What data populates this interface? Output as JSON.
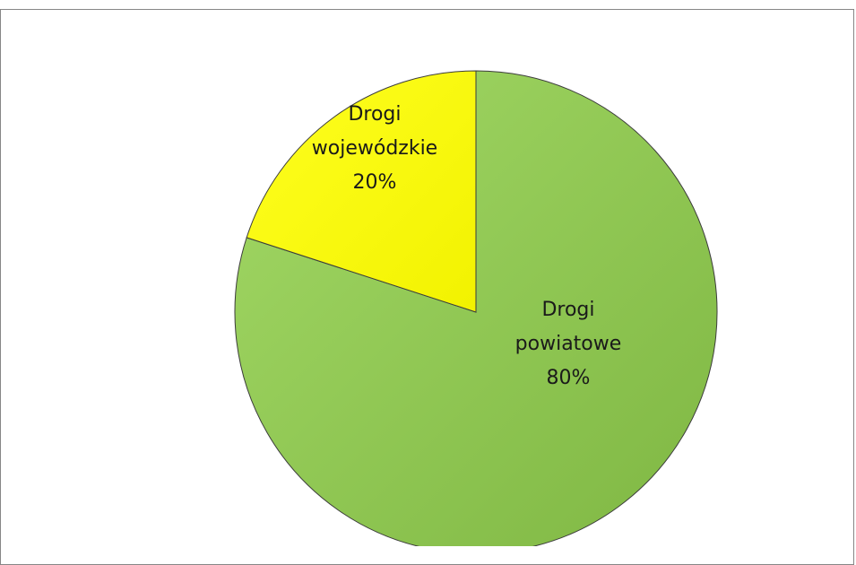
{
  "chart_data": {
    "type": "pie",
    "title": "",
    "slices": [
      {
        "name": "Drogi powiatowe",
        "label_lines": [
          "Drogi",
          "powiatowe",
          "80%"
        ],
        "percent": 80,
        "color": "#8dc752",
        "color_light": "#9fd65f"
      },
      {
        "name": "Drogi wojewódzkie",
        "label_lines": [
          "Drogi",
          "wojewódzkie",
          "20%"
        ],
        "percent": 20,
        "color": "#ffff00",
        "color_light": "#ffff33"
      }
    ],
    "start_angle_deg": 0,
    "direction": "clockwise",
    "legend": "none",
    "outline_color": "#3c3c3c"
  }
}
